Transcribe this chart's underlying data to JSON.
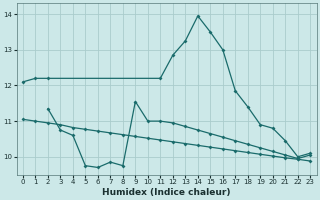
{
  "xlabel": "Humidex (Indice chaleur)",
  "bg_color": "#cce8e8",
  "grid_color": "#aacccc",
  "line_color": "#1a6b6b",
  "xlim": [
    -0.5,
    23.5
  ],
  "ylim": [
    9.5,
    14.3
  ],
  "yticks": [
    10,
    11,
    12,
    13,
    14
  ],
  "xticks": [
    0,
    1,
    2,
    3,
    4,
    5,
    6,
    7,
    8,
    9,
    10,
    11,
    12,
    13,
    14,
    15,
    16,
    17,
    18,
    19,
    20,
    21,
    22,
    23
  ],
  "line1_x": [
    0,
    1,
    2,
    11,
    12,
    13,
    14,
    15,
    16,
    17,
    18,
    19,
    20,
    21,
    22,
    23
  ],
  "line1_y": [
    12.1,
    12.2,
    12.2,
    12.2,
    12.85,
    13.25,
    13.95,
    13.5,
    13.0,
    11.85,
    11.4,
    10.9,
    10.8,
    10.45,
    10.0,
    10.1
  ],
  "line2_x": [
    2,
    3,
    4,
    5,
    6,
    7,
    8,
    9,
    10,
    11,
    12,
    13,
    14,
    15,
    16,
    17,
    18,
    19,
    20,
    21,
    22,
    23
  ],
  "line2_y": [
    11.35,
    10.75,
    10.6,
    9.75,
    9.7,
    9.85,
    9.75,
    11.55,
    11.0,
    11.0,
    10.95,
    10.85,
    10.75,
    10.65,
    10.55,
    10.45,
    10.35,
    10.25,
    10.15,
    10.05,
    9.95,
    10.05
  ],
  "line3_x": [
    0,
    1,
    2,
    3,
    4,
    5,
    6,
    7,
    8,
    9,
    10,
    11,
    12,
    13,
    14,
    15,
    16,
    17,
    18,
    19,
    20,
    21,
    22,
    23
  ],
  "line3_y": [
    11.05,
    11.0,
    10.95,
    10.9,
    10.82,
    10.77,
    10.72,
    10.67,
    10.62,
    10.57,
    10.52,
    10.47,
    10.42,
    10.37,
    10.32,
    10.27,
    10.22,
    10.17,
    10.12,
    10.07,
    10.02,
    9.97,
    9.93,
    9.88
  ]
}
